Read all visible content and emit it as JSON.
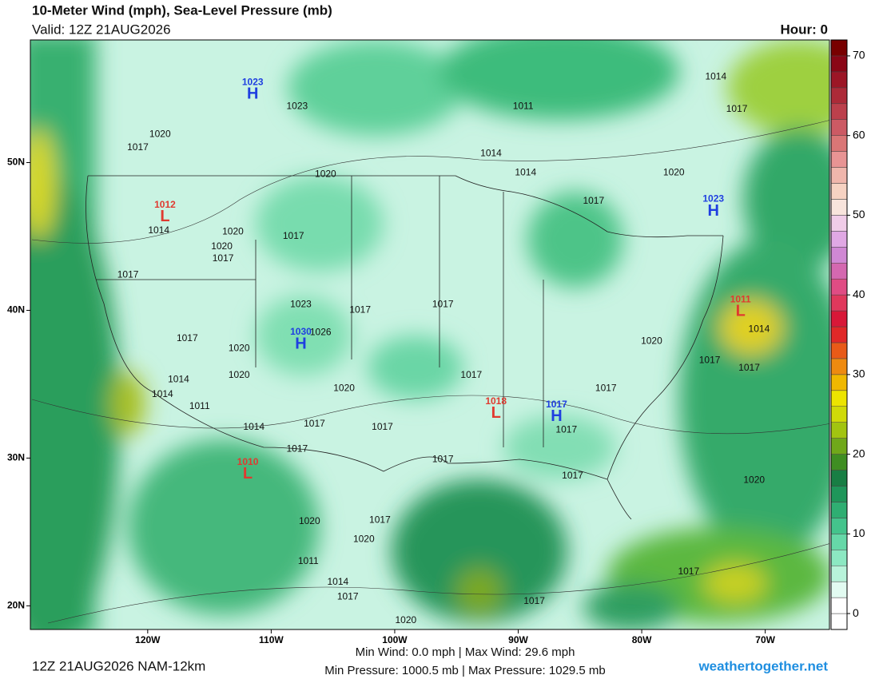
{
  "header": {
    "title": "10-Meter Wind (mph), Sea-Level Pressure (mb)",
    "valid": "Valid: 12Z 21AUG2026",
    "hour": "Hour: 0"
  },
  "map": {
    "lonlim": [
      -129.5,
      -64.8
    ],
    "latlim": [
      18.4,
      58.3
    ],
    "lon_ticks": [
      {
        "value": -120,
        "label": "120W"
      },
      {
        "value": -110,
        "label": "110W"
      },
      {
        "value": -100,
        "label": "100W"
      },
      {
        "value": -90,
        "label": "90W"
      },
      {
        "value": -80,
        "label": "80W"
      },
      {
        "value": -70,
        "label": "70W"
      }
    ],
    "lat_ticks": [
      {
        "value": 20,
        "label": "20N"
      },
      {
        "value": 30,
        "label": "30N"
      },
      {
        "value": 40,
        "label": "40N"
      },
      {
        "value": 50,
        "label": "50N"
      }
    ],
    "isobar_labels": [
      {
        "text": "1023",
        "lon": -107.9,
        "lat": 53.8
      },
      {
        "text": "1011",
        "lon": -89.6,
        "lat": 53.8
      },
      {
        "text": "1014",
        "lon": -74.0,
        "lat": 55.8
      },
      {
        "text": "1017",
        "lon": -72.3,
        "lat": 53.6
      },
      {
        "text": "1020",
        "lon": -119.0,
        "lat": 51.9
      },
      {
        "text": "1017",
        "lon": -120.8,
        "lat": 51.0
      },
      {
        "text": "1020",
        "lon": -105.6,
        "lat": 49.2
      },
      {
        "text": "1014",
        "lon": -92.2,
        "lat": 50.6
      },
      {
        "text": "1014",
        "lon": -89.4,
        "lat": 49.3
      },
      {
        "text": "1020",
        "lon": -77.4,
        "lat": 49.3
      },
      {
        "text": "1017",
        "lon": -83.9,
        "lat": 47.4
      },
      {
        "text": "1014",
        "lon": -119.1,
        "lat": 45.4
      },
      {
        "text": "1020",
        "lon": -113.1,
        "lat": 45.3
      },
      {
        "text": "1020",
        "lon": -114.0,
        "lat": 44.3
      },
      {
        "text": "1017",
        "lon": -113.9,
        "lat": 43.5
      },
      {
        "text": "1017",
        "lon": -108.2,
        "lat": 45.0
      },
      {
        "text": "1017",
        "lon": -121.6,
        "lat": 42.4
      },
      {
        "text": "1023",
        "lon": -107.6,
        "lat": 40.4
      },
      {
        "text": "1017",
        "lon": -102.8,
        "lat": 40.0
      },
      {
        "text": "1017",
        "lon": -96.1,
        "lat": 40.4
      },
      {
        "text": "1026",
        "lon": -106.0,
        "lat": 38.5
      },
      {
        "text": "1017",
        "lon": -116.8,
        "lat": 38.1
      },
      {
        "text": "1020",
        "lon": -112.6,
        "lat": 37.4
      },
      {
        "text": "1020",
        "lon": -79.2,
        "lat": 37.9
      },
      {
        "text": "1014",
        "lon": -70.5,
        "lat": 38.7
      },
      {
        "text": "1017",
        "lon": -74.5,
        "lat": 36.6
      },
      {
        "text": "1017",
        "lon": -71.3,
        "lat": 36.1
      },
      {
        "text": "1020",
        "lon": -112.6,
        "lat": 35.6
      },
      {
        "text": "1017",
        "lon": -93.8,
        "lat": 35.6
      },
      {
        "text": "1014",
        "lon": -117.5,
        "lat": 35.3
      },
      {
        "text": "1014",
        "lon": -118.8,
        "lat": 34.3
      },
      {
        "text": "1011",
        "lon": -115.8,
        "lat": 33.5
      },
      {
        "text": "1017",
        "lon": -82.9,
        "lat": 34.7
      },
      {
        "text": "1020",
        "lon": -104.1,
        "lat": 34.7
      },
      {
        "text": "1014",
        "lon": -111.4,
        "lat": 32.1
      },
      {
        "text": "1017",
        "lon": -106.5,
        "lat": 32.3
      },
      {
        "text": "1017",
        "lon": -101.0,
        "lat": 32.1
      },
      {
        "text": "1017",
        "lon": -86.1,
        "lat": 31.9
      },
      {
        "text": "1017",
        "lon": -107.9,
        "lat": 30.6
      },
      {
        "text": "1017",
        "lon": -96.1,
        "lat": 29.9
      },
      {
        "text": "1017",
        "lon": -85.6,
        "lat": 28.8
      },
      {
        "text": "1020",
        "lon": -70.9,
        "lat": 28.5
      },
      {
        "text": "1020",
        "lon": -106.9,
        "lat": 25.7
      },
      {
        "text": "1017",
        "lon": -101.2,
        "lat": 25.8
      },
      {
        "text": "1020",
        "lon": -102.5,
        "lat": 24.5
      },
      {
        "text": "1011",
        "lon": -107.0,
        "lat": 23.0
      },
      {
        "text": "1014",
        "lon": -104.6,
        "lat": 21.6
      },
      {
        "text": "1017",
        "lon": -103.8,
        "lat": 20.6
      },
      {
        "text": "1017",
        "lon": -76.2,
        "lat": 22.3
      },
      {
        "text": "1017",
        "lon": -88.7,
        "lat": 20.3
      },
      {
        "text": "1020",
        "lon": -99.1,
        "lat": 19.0
      }
    ],
    "centers": [
      {
        "letter": "H",
        "value": "1023",
        "lon": -111.5,
        "lat": 54.6,
        "color": "#1f3fe0"
      },
      {
        "letter": "L",
        "value": "1012",
        "lon": -118.6,
        "lat": 46.3,
        "color": "#e03a30"
      },
      {
        "letter": "H",
        "value": "1023",
        "lon": -74.2,
        "lat": 46.7,
        "color": "#1f3fe0"
      },
      {
        "letter": "H",
        "value": "1030",
        "lon": -107.6,
        "lat": 37.7,
        "color": "#1f3fe0"
      },
      {
        "letter": "L",
        "value": "1011",
        "lon": -72.0,
        "lat": 39.9,
        "color": "#e03a30"
      },
      {
        "letter": "L",
        "value": "1018",
        "lon": -91.8,
        "lat": 33.0,
        "color": "#e03a30"
      },
      {
        "letter": "H",
        "value": "1017",
        "lon": -86.9,
        "lat": 32.8,
        "color": "#1f3fe0"
      },
      {
        "letter": "L",
        "value": "1010",
        "lon": -111.9,
        "lat": 28.9,
        "color": "#e03a30"
      }
    ]
  },
  "colorbar": {
    "lim": [
      -2,
      72
    ],
    "ticks": [
      0,
      10,
      20,
      30,
      40,
      50,
      60,
      70
    ],
    "colors": [
      "#ffffff",
      "#ffffff",
      "#e2fbf1",
      "#b8f3da",
      "#8ce8c2",
      "#66d8a8",
      "#44c48c",
      "#2fae72",
      "#1f965a",
      "#187e44",
      "#3f8e22",
      "#70a81a",
      "#a2c410",
      "#d0da08",
      "#ece400",
      "#f0b800",
      "#ee8a10",
      "#e85a18",
      "#e02828",
      "#d81838",
      "#e0385c",
      "#e04c84",
      "#d468b0",
      "#d088d4",
      "#e0a8e4",
      "#f0cce8",
      "#f8e4dc",
      "#f6d2c2",
      "#f0b6ac",
      "#e89494",
      "#da7676",
      "#cc5a64",
      "#bc404c",
      "#ac2a38",
      "#9c1626",
      "#8a0616",
      "#780000"
    ]
  },
  "footer": {
    "run": "12Z 21AUG2026 NAM-12km",
    "wind_stats": "Min Wind:  0.0 mph | Max Wind: 29.6 mph",
    "pressure_stats": "Min Pressure: 1000.5 mb | Max Pressure: 1029.5 mb",
    "credit": "weathertogether.net"
  }
}
